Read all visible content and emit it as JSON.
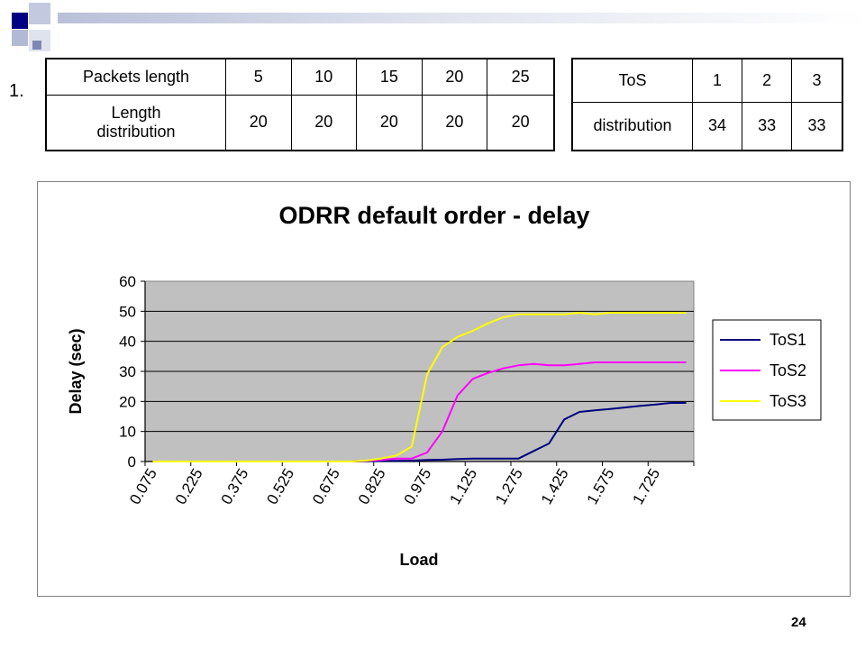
{
  "slide": {
    "item_number": "1.",
    "page_number": "24"
  },
  "tables": {
    "packets": {
      "row1": [
        "Packets length",
        "5",
        "10",
        "15",
        "20",
        "25"
      ],
      "row2": [
        "Length distribution",
        "20",
        "20",
        "20",
        "20",
        "20"
      ]
    },
    "tos": {
      "row1": [
        "ToS",
        "1",
        "2",
        "3"
      ],
      "row2": [
        "distribution",
        "34",
        "33",
        "33"
      ]
    }
  },
  "colors": {
    "plot_bg": "#c0c0c0",
    "tos1": "#000080",
    "tos2": "#ff00ff",
    "tos3": "#ffff00"
  },
  "chart_data": {
    "type": "line",
    "title": "ODRR default order - delay",
    "xlabel": "Load",
    "ylabel": "Delay (sec)",
    "ylim": [
      0,
      60
    ],
    "yticks": [
      0,
      10,
      20,
      30,
      40,
      50,
      60
    ],
    "x": [
      0.075,
      0.125,
      0.175,
      0.225,
      0.275,
      0.325,
      0.375,
      0.425,
      0.475,
      0.525,
      0.575,
      0.625,
      0.675,
      0.725,
      0.775,
      0.825,
      0.875,
      0.925,
      0.975,
      1.025,
      1.075,
      1.125,
      1.175,
      1.225,
      1.275,
      1.325,
      1.375,
      1.425,
      1.475,
      1.525,
      1.575,
      1.625,
      1.675,
      1.725,
      1.775,
      1.825
    ],
    "xtick_labels": [
      "0.075",
      "0.225",
      "0.375",
      "0.525",
      "0.675",
      "0.825",
      "0.975",
      "1.125",
      "1.275",
      "1.425",
      "1.575",
      "1.725"
    ],
    "xtick_label_step": 3,
    "grid": "horizontal",
    "legend": "right",
    "series": [
      {
        "name": "ToS1",
        "values": [
          0,
          0,
          0,
          0,
          0,
          0,
          0,
          0,
          0,
          0,
          0,
          0,
          0,
          0,
          0.1,
          0.2,
          0.2,
          0.3,
          0.5,
          0.6,
          0.8,
          1,
          1,
          1,
          1,
          3.5,
          6,
          14,
          16.5,
          17,
          17.5,
          18,
          18.5,
          19,
          19.5,
          19.5
        ]
      },
      {
        "name": "ToS2",
        "values": [
          0,
          0,
          0,
          0,
          0,
          0,
          0,
          0,
          0,
          0,
          0,
          0,
          0,
          0,
          0.2,
          0.5,
          1,
          1,
          3,
          10,
          22,
          27.5,
          29.5,
          31,
          32,
          32.5,
          32,
          32,
          32.5,
          33,
          33,
          33,
          33,
          33,
          33,
          33
        ]
      },
      {
        "name": "ToS3",
        "values": [
          0,
          0,
          0,
          0,
          0,
          0,
          0,
          0,
          0,
          0,
          0,
          0,
          0,
          0,
          0.3,
          1,
          2,
          5,
          29,
          38,
          41.5,
          43.5,
          46,
          48,
          49,
          49,
          49,
          49,
          49.5,
          49,
          49.5,
          49.5,
          49.5,
          49.5,
          49.5,
          49.5
        ]
      }
    ]
  }
}
